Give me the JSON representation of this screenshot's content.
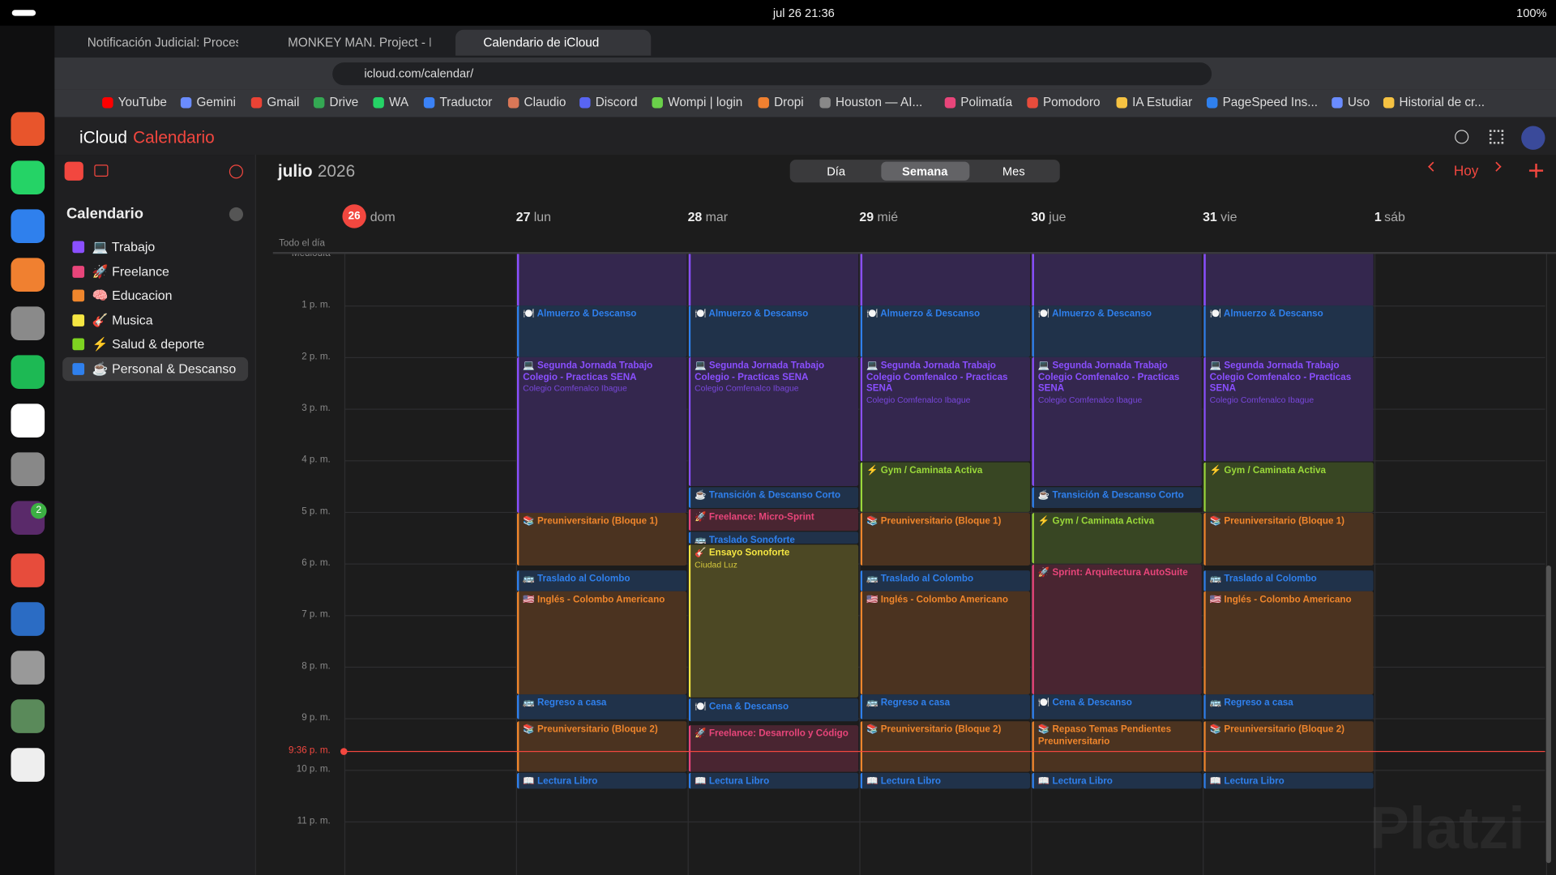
{
  "system_bar": {
    "datetime": "jul 26  21:36",
    "battery": "100%"
  },
  "tabs": [
    "Notificación Judicial: Proceso",
    "MONKEY MAN. Project - Port",
    "Calendario de iCloud"
  ],
  "address": "icloud.com/calendar/",
  "bookmarks": [
    "YouTube",
    "Gemini",
    "Gmail",
    "Drive",
    "WA",
    "Traductor",
    "Claudio",
    "Discord",
    "Wompi | login",
    "Dropi",
    "Houston — AI...",
    "Polimatía",
    "Pomodoro",
    "IA Estudiar",
    "PageSpeed Ins...",
    "Uso",
    "Historial de cr..."
  ],
  "dock_badge": "2",
  "app": {
    "brand": "iCloud",
    "product": "Calendario"
  },
  "calendar": {
    "month": "julio",
    "year": "2026",
    "views": [
      "Día",
      "Semana",
      "Mes"
    ],
    "selected_view": "Semana",
    "today_button": "Hoy",
    "sidebar_title": "Calendario",
    "calendars": [
      {
        "name": "💻 Trabajo",
        "color": "#8a4fff"
      },
      {
        "name": "🚀 Freelance",
        "color": "#e8457a"
      },
      {
        "name": "🧠 Educacion",
        "color": "#f0862c"
      },
      {
        "name": "🎸 Musica",
        "color": "#f5e642"
      },
      {
        "name": "⚡ Salud & deporte",
        "color": "#7ed321"
      },
      {
        "name": "☕ Personal & Descanso",
        "color": "#2f80ed"
      }
    ],
    "all_day": "Todo el día",
    "noon": "Mediodía",
    "hours": [
      "1 p. m.",
      "2 p. m.",
      "3 p. m.",
      "4 p. m.",
      "5 p. m.",
      "6 p. m.",
      "7 p. m.",
      "8 p. m.",
      "9 p. m.",
      "10 p. m.",
      "11 p. m."
    ],
    "now": "9:36 p. m.",
    "days": [
      {
        "num": "26",
        "name": "dom",
        "events": []
      },
      {
        "num": "27",
        "name": "lun",
        "events": [
          {
            "title": "🍽️ Almuerzo & Descanso",
            "color": "#2f80ed"
          },
          {
            "title": "💻 Segunda Jornada Trabajo Colegio - Practicas SENA",
            "subtitle": "Colegio Comfenalco Ibague",
            "color": "#8a4fff"
          },
          {
            "title": "📚 Preuniversitario (Bloque 1)",
            "color": "#f0862c"
          },
          {
            "title": "🚌 Traslado al Colombo",
            "color": "#2f80ed"
          },
          {
            "title": "🇺🇸 Inglés - Colombo Americano",
            "color": "#f0862c"
          },
          {
            "title": "🚌 Regreso a casa",
            "color": "#2f80ed"
          },
          {
            "title": "📚 Preuniversitario (Bloque 2)",
            "color": "#f0862c"
          },
          {
            "title": "📖 Lectura Libro",
            "color": "#2f80ed"
          }
        ]
      },
      {
        "num": "28",
        "name": "mar",
        "events": [
          {
            "title": "🍽️ Almuerzo & Descanso",
            "color": "#2f80ed"
          },
          {
            "title": "💻 Segunda Jornada Trabajo Colegio - Practicas SENA",
            "subtitle": "Colegio Comfenalco Ibague",
            "color": "#8a4fff"
          },
          {
            "title": "☕ Transición & Descanso Corto",
            "color": "#2f80ed"
          },
          {
            "title": "🚀 Freelance: Micro-Sprint",
            "color": "#e8457a"
          },
          {
            "title": "🚌 Traslado Sonoforte",
            "color": "#2f80ed"
          },
          {
            "title": "🎸 Ensayo Sonoforte",
            "subtitle": "Ciudad Luz",
            "color": "#f5e642"
          },
          {
            "title": "🍽️ Cena & Descanso",
            "color": "#2f80ed"
          },
          {
            "title": "🚀 Freelance: Desarrollo y Código",
            "color": "#e8457a"
          },
          {
            "title": "📖 Lectura Libro",
            "color": "#2f80ed"
          }
        ]
      },
      {
        "num": "29",
        "name": "mié",
        "events": [
          {
            "title": "🍽️ Almuerzo & Descanso",
            "color": "#2f80ed"
          },
          {
            "title": "💻 Segunda Jornada Trabajo Colegio Comfenalco - Practicas SENA",
            "subtitle": "Colegio Comfenalco Ibague",
            "color": "#8a4fff"
          },
          {
            "title": "⚡ Gym / Caminata Activa",
            "color": "#9ad93a"
          },
          {
            "title": "📚 Preuniversitario (Bloque 1)",
            "color": "#f0862c"
          },
          {
            "title": "🚌 Traslado al Colombo",
            "color": "#2f80ed"
          },
          {
            "title": "🇺🇸 Inglés - Colombo Americano",
            "color": "#f0862c"
          },
          {
            "title": "🚌 Regreso a casa",
            "color": "#2f80ed"
          },
          {
            "title": "📚 Preuniversitario (Bloque 2)",
            "color": "#f0862c"
          },
          {
            "title": "📖 Lectura Libro",
            "color": "#2f80ed"
          }
        ]
      },
      {
        "num": "30",
        "name": "jue",
        "events": [
          {
            "title": "🍽️ Almuerzo & Descanso",
            "color": "#2f80ed"
          },
          {
            "title": "💻 Segunda Jornada Trabajo Colegio Comfenalco - Practicas SENA",
            "subtitle": "Colegio Comfenalco Ibague",
            "color": "#8a4fff"
          },
          {
            "title": "☕ Transición & Descanso Corto",
            "color": "#2f80ed"
          },
          {
            "title": "⚡ Gym / Caminata Activa",
            "color": "#9ad93a"
          },
          {
            "title": "🚀 Sprint: Arquitectura AutoSuite",
            "color": "#e8457a"
          },
          {
            "title": "🍽️ Cena & Descanso",
            "color": "#2f80ed"
          },
          {
            "title": "📚 Repaso Temas Pendientes Preuniversitario",
            "color": "#f0862c"
          },
          {
            "title": "📖 Lectura Libro",
            "color": "#2f80ed"
          }
        ]
      },
      {
        "num": "31",
        "name": "vie",
        "events": [
          {
            "title": "🍽️ Almuerzo & Descanso",
            "color": "#2f80ed"
          },
          {
            "title": "💻 Segunda Jornada Trabajo Colegio Comfenalco - Practicas SENA",
            "subtitle": "Colegio Comfenalco Ibague",
            "color": "#8a4fff"
          },
          {
            "title": "⚡ Gym / Caminata Activa",
            "color": "#9ad93a"
          },
          {
            "title": "📚 Preuniversitario (Bloque 1)",
            "color": "#f0862c"
          },
          {
            "title": "🚌 Traslado al Colombo",
            "color": "#2f80ed"
          },
          {
            "title": "🇺🇸 Inglés - Colombo Americano",
            "color": "#f0862c"
          },
          {
            "title": "🚌 Regreso a casa",
            "color": "#2f80ed"
          },
          {
            "title": "📚 Preuniversitario (Bloque 2)",
            "color": "#f0862c"
          },
          {
            "title": "📖 Lectura Libro",
            "color": "#2f80ed"
          }
        ]
      },
      {
        "num": "1",
        "name": "sáb",
        "events": []
      }
    ]
  },
  "watermark": "Platzi"
}
